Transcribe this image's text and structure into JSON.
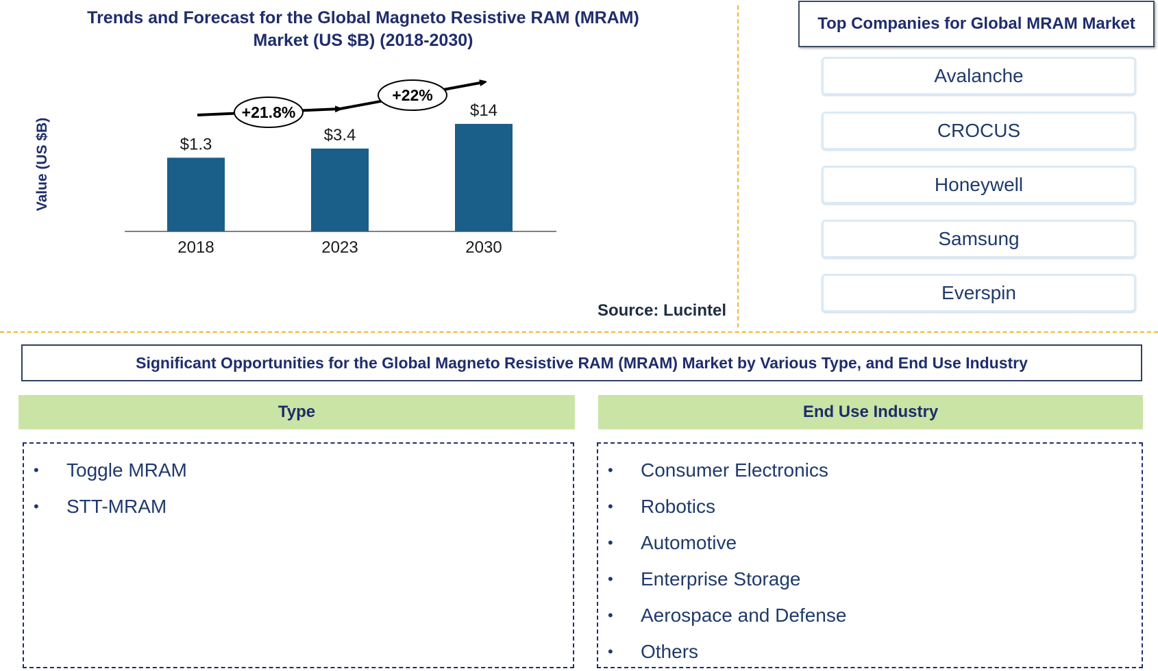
{
  "chart": {
    "title_line1": "Trends and Forecast for the Global Magneto Resistive RAM (MRAM)",
    "title_line2": "Market (US $B) (2018-2030)",
    "source": "Source: Lucintel"
  },
  "chart_data": {
    "type": "bar",
    "title": "Trends and Forecast for the Global Magneto Resistive RAM (MRAM) Market (US $B) (2018-2030)",
    "xlabel": "",
    "ylabel": "Value (US $B)",
    "categories": [
      "2018",
      "2023",
      "2030"
    ],
    "values": [
      1.3,
      3.4,
      14
    ],
    "value_labels": [
      "$1.3",
      "$3.4",
      "$14"
    ],
    "growth_annotations": [
      "+21.8%",
      "+22%"
    ],
    "bar_color": "#1a5e8a",
    "grid": false,
    "legend": "none"
  },
  "companies": {
    "title": "Top Companies for Global MRAM Market",
    "items": [
      "Avalanche",
      "CROCUS",
      "Honeywell",
      "Samsung",
      "Everspin"
    ]
  },
  "opportunities": {
    "title": "Significant Opportunities for the Global Magneto Resistive RAM (MRAM) Market by Various Type, and End Use Industry",
    "type": {
      "header": "Type",
      "items": [
        "Toggle MRAM",
        "STT-MRAM"
      ]
    },
    "end_use": {
      "header": "End Use Industry",
      "items": [
        "Consumer Electronics",
        "Robotics",
        "Automotive",
        "Enterprise Storage",
        "Aerospace and Defense",
        "Others"
      ]
    }
  },
  "colors": {
    "title_navy": "#1f2d6b",
    "bar_blue": "#1a5e8a",
    "separator_gold": "#f2b531",
    "header_green": "#c9e4a4",
    "company_border": "#dceaf6"
  }
}
